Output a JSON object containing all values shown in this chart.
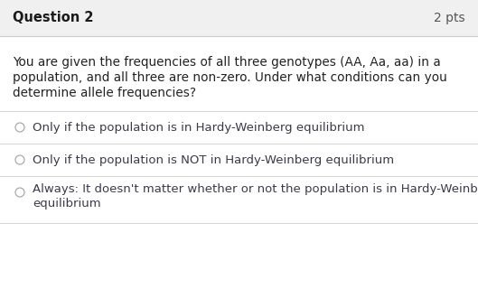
{
  "title": "Question 2",
  "pts": "2 pts",
  "question_text_lines": [
    "You are given the frequencies of all three genotypes (AA, Aa, aa) in a",
    "population, and all three are non-zero. Under what conditions can you",
    "determine allele frequencies?"
  ],
  "options": [
    [
      "Only if the population is in Hardy-Weinberg equilibrium"
    ],
    [
      "Only if the population is NOT in Hardy-Weinberg equilibrium"
    ],
    [
      "Always: It doesn't matter whether or not the population is in Hardy-Weinberg",
      "equilibrium"
    ]
  ],
  "bg_header": "#f0f0f0",
  "bg_body": "#ffffff",
  "header_line_color": "#cccccc",
  "divider_color": "#d4d4d4",
  "title_color": "#1a1a1a",
  "pts_color": "#555555",
  "question_color": "#222222",
  "option_color": "#3a3a4a",
  "circle_edge_color": "#aaaaaa",
  "title_fontsize": 10.5,
  "pts_fontsize": 10,
  "question_fontsize": 9.8,
  "option_fontsize": 9.5,
  "fig_w": 5.29,
  "fig_h": 3.3,
  "dpi": 100
}
